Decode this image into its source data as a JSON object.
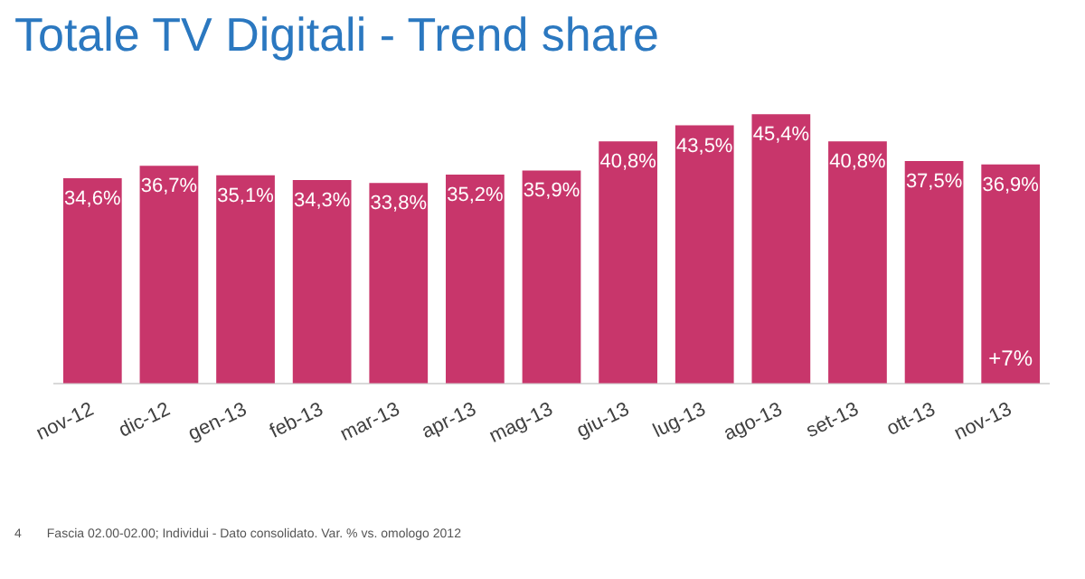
{
  "chart_data": {
    "type": "bar",
    "title": "Totale TV Digitali - Trend share",
    "categories": [
      "nov-12",
      "dic-12",
      "gen-13",
      "feb-13",
      "mar-13",
      "apr-13",
      "mag-13",
      "giu-13",
      "lug-13",
      "ago-13",
      "set-13",
      "ott-13",
      "nov-13"
    ],
    "values": [
      34.6,
      36.7,
      35.1,
      34.3,
      33.8,
      35.2,
      35.9,
      40.8,
      43.5,
      45.4,
      40.8,
      37.5,
      36.9
    ],
    "value_labels": [
      "34,6%",
      "36,7%",
      "35,1%",
      "34,3%",
      "33,8%",
      "35,2%",
      "35,9%",
      "40,8%",
      "43,5%",
      "45,4%",
      "40,8%",
      "37,5%",
      "36,9%"
    ],
    "color": "#c8366b",
    "grid": false,
    "legend": false,
    "tick_labels": "x",
    "annotations": [
      {
        "text": "+7%",
        "x": "nov-13",
        "y": 4
      },
      "4",
      "Fascia 02.00-02.00; Individui - Dato consolidato. Var. % vs. omologo 2012"
    ]
  }
}
